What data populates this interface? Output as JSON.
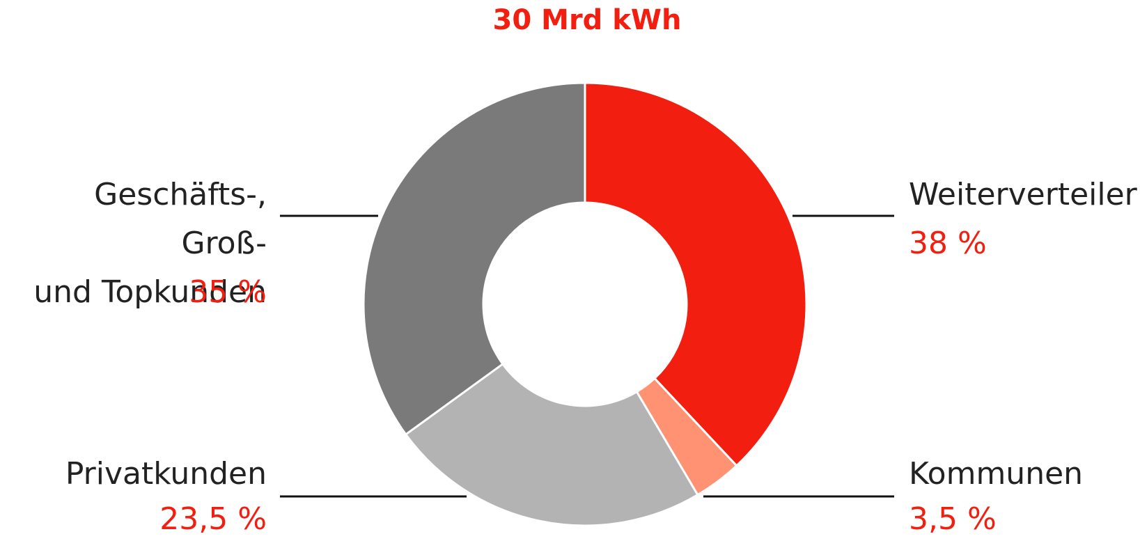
{
  "chart_data": {
    "type": "donut",
    "title": "30 Mrd kWh",
    "categories": [
      "Weiterverteiler",
      "Kommunen",
      "Privatkunden",
      "Geschäfts-, Groß-\nund Topkunden"
    ],
    "values": [
      38,
      3.5,
      23.5,
      35
    ],
    "value_labels": [
      "38 %",
      "3,5 %",
      "23,5 %",
      "35 %"
    ],
    "colors": [
      "#f21e0f",
      "#ff9273",
      "#b3b3b3",
      "#7a7a7a"
    ]
  }
}
